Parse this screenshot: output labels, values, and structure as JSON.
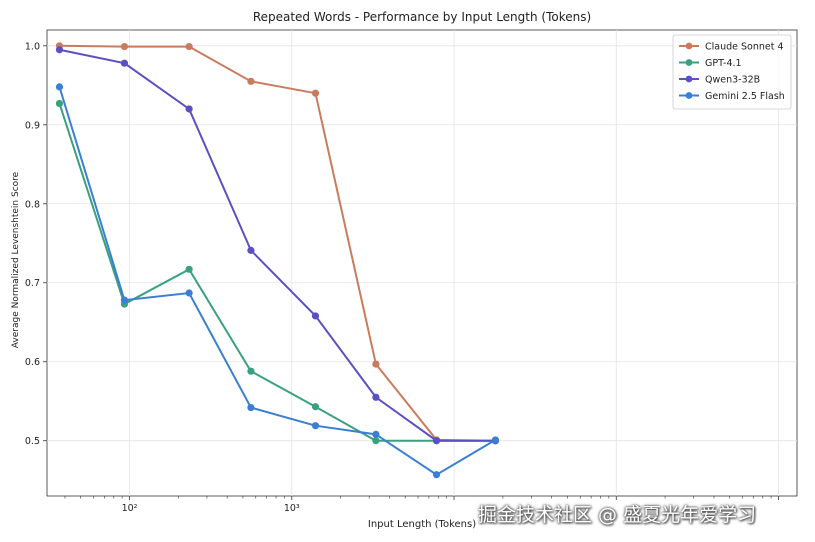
{
  "chart_data": {
    "type": "line",
    "title": "Repeated Words - Performance by Input Length (Tokens)",
    "xlabel": "Input Length (Tokens)",
    "ylabel": "Average Normalized Levenshtein Score",
    "xscale": "log",
    "xlim": [
      31,
      1300000
    ],
    "ylim": [
      0.43,
      1.02
    ],
    "yticks": [
      "0.5",
      "0.6",
      "0.7",
      "0.8",
      "0.9",
      "1.0"
    ],
    "xticks": [
      {
        "value": 100,
        "label": "10²"
      },
      {
        "value": 1000,
        "label": "10³"
      }
    ],
    "grid": true,
    "legend_position": "top-right",
    "x": [
      37,
      93,
      233,
      560,
      1400,
      3300,
      7800,
      18000
    ],
    "series": [
      {
        "name": "Claude Sonnet 4",
        "color": "#c97c5d",
        "values": [
          1.0,
          0.999,
          0.999,
          0.955,
          0.94,
          0.597,
          0.501,
          0.5
        ]
      },
      {
        "name": "GPT-4.1",
        "color": "#3aa17e",
        "values": [
          0.927,
          0.673,
          0.717,
          0.588,
          0.543,
          0.5,
          0.5,
          0.5
        ]
      },
      {
        "name": "Qwen3-32B",
        "color": "#5b4fc4",
        "values": [
          0.995,
          0.978,
          0.92,
          0.741,
          0.658,
          0.555,
          0.5,
          0.5
        ]
      },
      {
        "name": "Gemini 2.5 Flash",
        "color": "#3a7fd5",
        "values": [
          0.948,
          0.678,
          0.687,
          0.542,
          0.519,
          0.508,
          0.457,
          0.501
        ]
      }
    ]
  },
  "watermark": "掘金技术社区 @ 盛夏光年爱学习"
}
